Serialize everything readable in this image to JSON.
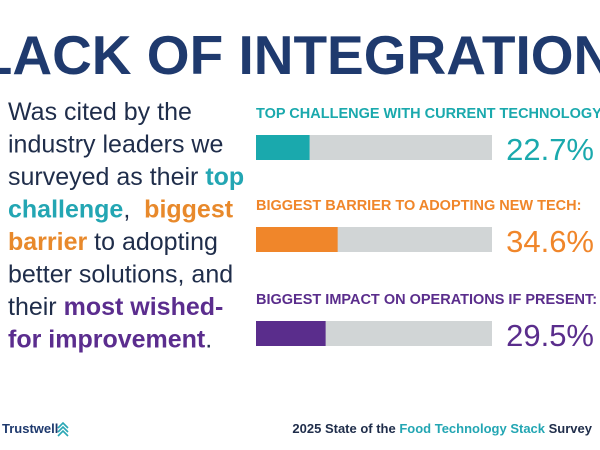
{
  "title": "LACK OF INTEGRATION",
  "description": {
    "color": "#1f2d4a",
    "lines": [
      [
        {
          "text": "Was cited by the"
        }
      ],
      [
        {
          "text": "industry leaders we"
        }
      ],
      [
        {
          "text": "surveyed as their "
        },
        {
          "text": "top",
          "color": "#23a6b3",
          "bold": true
        }
      ],
      [
        {
          "text": "challenge",
          "color": "#23a6b3",
          "bold": true
        },
        {
          "text": ",  "
        },
        {
          "text": "biggest",
          "color": "#e8892b",
          "bold": true
        }
      ],
      [
        {
          "text": "barrier",
          "color": "#e8892b",
          "bold": true
        },
        {
          "text": " to adopting"
        }
      ],
      [
        {
          "text": "better solutions, and"
        }
      ],
      [
        {
          "text": "their "
        },
        {
          "text": "most wished-",
          "color": "#5b2d8e",
          "bold": true
        }
      ],
      [
        {
          "text": "for improvement",
          "color": "#5b2d8e",
          "bold": true
        },
        {
          "text": "."
        }
      ]
    ]
  },
  "chart_data": {
    "type": "bar",
    "orientation": "horizontal",
    "categories": [
      "TOP CHALLENGE WITH CURRENT TECHNOLOGY",
      "BIGGEST BARRIER TO ADOPTING NEW TECH:",
      "BIGGEST IMPACT ON OPERATIONS IF PRESENT:"
    ],
    "values": [
      22.7,
      34.6,
      29.5
    ],
    "value_labels": [
      "22.7%",
      "34.6%",
      "29.5%"
    ],
    "colors": [
      "#1aa9ad",
      "#f0862a",
      "#5a2d8c"
    ],
    "track_color": "#d1d5d6",
    "xlim": [
      0,
      100
    ]
  },
  "footer": {
    "brand": "Trustwell",
    "survey": [
      {
        "text": "2025 State of the "
      },
      {
        "text": "Food Technology Stack",
        "color": "#23a6b3"
      },
      {
        "text": " Survey"
      }
    ]
  }
}
